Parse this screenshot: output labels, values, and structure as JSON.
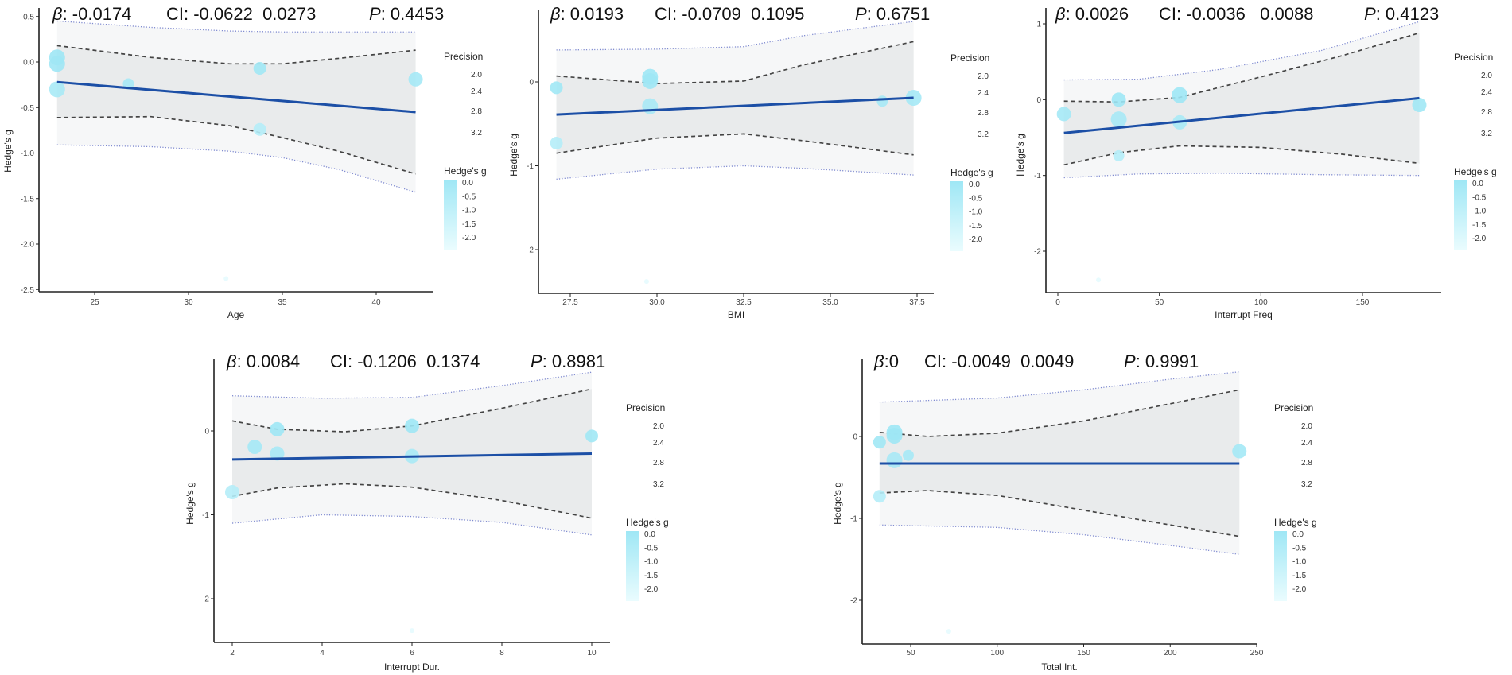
{
  "colors": {
    "point": "#9fe7f5",
    "point_low": "#e6fbfe",
    "regression_line": "#1c4fa6",
    "ci_fill": "#e9ebec",
    "pi_fill": "#f6f7f8",
    "ci_line": "#444444",
    "pi_line": "#7f8ad0",
    "axis": "#222222"
  },
  "chart_data": [
    {
      "type": "scatter",
      "title": {
        "beta_symbol": "β",
        "beta": ": -0.0174",
        "ci": "CI: -0.0622  0.0273",
        "p_symbol": "P",
        "p": ": 0.4453"
      },
      "xlabel": "Age",
      "ylabel": "Hedge's g",
      "xlim": [
        22.2,
        43
      ],
      "ylim": [
        -2.5,
        0.55
      ],
      "xticks": [
        {
          "value": 25,
          "label": "25"
        },
        {
          "value": 30,
          "label": "30"
        },
        {
          "value": 35,
          "label": "35"
        },
        {
          "value": 40,
          "label": "40"
        }
      ],
      "yticks": [
        {
          "value": 0.5,
          "label": "0.5"
        },
        {
          "value": 0,
          "label": "0.0"
        },
        {
          "value": -0.5,
          "label": "-0.5"
        },
        {
          "value": -1,
          "label": "-1.0"
        },
        {
          "value": -1.5,
          "label": "-1.5"
        },
        {
          "value": -2,
          "label": "-2.0"
        },
        {
          "value": -2.5,
          "label": "-2.5"
        }
      ],
      "points": [
        {
          "x": 23,
          "y": 0.05,
          "precision": 3.2
        },
        {
          "x": 23,
          "y": -0.02,
          "precision": 3.2
        },
        {
          "x": 23,
          "y": -0.3,
          "precision": 3.2
        },
        {
          "x": 26.8,
          "y": -0.24,
          "precision": 2.6
        },
        {
          "x": 33.8,
          "y": -0.07,
          "precision": 2.8
        },
        {
          "x": 33.8,
          "y": -0.74,
          "precision": 2.8
        },
        {
          "x": 42.1,
          "y": -0.19,
          "precision": 3.0
        },
        {
          "x": 32,
          "y": -2.38,
          "precision": 1.8
        }
      ],
      "regression": {
        "x": [
          23,
          42.1
        ],
        "y": [
          -0.22,
          -0.55
        ]
      },
      "ci_band": {
        "x": [
          23,
          28,
          32.2,
          35,
          38,
          42.1
        ],
        "lower": [
          -0.61,
          -0.6,
          -0.7,
          -0.83,
          -0.98,
          -1.23
        ],
        "upper": [
          0.18,
          0.05,
          -0.02,
          -0.02,
          0.04,
          0.13
        ]
      },
      "pi_band": {
        "x": [
          23,
          28,
          32.2,
          35,
          38,
          42.1
        ],
        "lower": [
          -0.91,
          -0.93,
          -0.98,
          -1.05,
          -1.18,
          -1.43
        ],
        "upper": [
          0.45,
          0.38,
          0.34,
          0.33,
          0.33,
          0.33
        ]
      },
      "legend": {
        "size_title": "Precision",
        "size_breaks": [
          "2.0",
          "2.4",
          "2.8",
          "3.2"
        ],
        "color_title": "Hedge's g",
        "color_breaks": [
          "0.0",
          "-0.5",
          "-1.0",
          "-1.5",
          "-2.0"
        ]
      }
    },
    {
      "type": "scatter",
      "title": {
        "beta_symbol": "β",
        "beta": ": 0.0193",
        "ci": "CI: -0.0709  0.1095",
        "p_symbol": "P",
        "p": ": 0.6751"
      },
      "xlabel": "BMI",
      "ylabel": "Hedge's g",
      "xlim": [
        26.6,
        38
      ],
      "ylim": [
        -2.5,
        0.85
      ],
      "xticks": [
        {
          "value": 27.5,
          "label": "27.5"
        },
        {
          "value": 30,
          "label": "30.0"
        },
        {
          "value": 32.5,
          "label": "32.5"
        },
        {
          "value": 35,
          "label": "35.0"
        },
        {
          "value": 37.5,
          "label": "37.5"
        }
      ],
      "yticks": [
        {
          "value": 0,
          "label": "0"
        },
        {
          "value": -1,
          "label": "-1"
        },
        {
          "value": -2,
          "label": "-2"
        }
      ],
      "points": [
        {
          "x": 27.1,
          "y": -0.07,
          "precision": 2.8
        },
        {
          "x": 27.1,
          "y": -0.73,
          "precision": 2.8
        },
        {
          "x": 29.8,
          "y": 0.06,
          "precision": 3.2
        },
        {
          "x": 29.8,
          "y": 0.01,
          "precision": 3.2
        },
        {
          "x": 29.8,
          "y": -0.29,
          "precision": 3.2
        },
        {
          "x": 29.7,
          "y": -2.38,
          "precision": 1.8
        },
        {
          "x": 36.5,
          "y": -0.23,
          "precision": 2.6
        },
        {
          "x": 37.4,
          "y": -0.19,
          "precision": 3.2
        }
      ],
      "regression": {
        "x": [
          27.1,
          37.4
        ],
        "y": [
          -0.39,
          -0.19
        ]
      },
      "ci_band": {
        "x": [
          27.1,
          30,
          32.5,
          34.2,
          37.4
        ],
        "lower": [
          -0.85,
          -0.67,
          -0.62,
          -0.7,
          -0.87
        ],
        "upper": [
          0.07,
          -0.02,
          0.01,
          0.2,
          0.48
        ]
      },
      "pi_band": {
        "x": [
          27.1,
          30,
          32.5,
          34.2,
          37.4
        ],
        "lower": [
          -1.16,
          -1.04,
          -1.0,
          -1.03,
          -1.11
        ],
        "upper": [
          0.38,
          0.39,
          0.42,
          0.55,
          0.72
        ]
      },
      "legend": {
        "size_title": "Precision",
        "size_breaks": [
          "2.0",
          "2.4",
          "2.8",
          "3.2"
        ],
        "color_title": "Hedge's g",
        "color_breaks": [
          "0.0",
          "-0.5",
          "-1.0",
          "-1.5",
          "-2.0"
        ]
      }
    },
    {
      "type": "scatter",
      "title": {
        "beta_symbol": "β",
        "beta": ": 0.0026",
        "ci": "CI: -0.0036   0.0088",
        "p_symbol": "P",
        "p": ": 0.4123"
      },
      "xlabel": "Interrupt Freq",
      "ylabel": "Hedge's g",
      "xlim": [
        -6,
        187
      ],
      "ylim": [
        -2.5,
        1.2
      ],
      "xticks": [
        {
          "value": 0,
          "label": "0"
        },
        {
          "value": 50,
          "label": "50"
        },
        {
          "value": 100,
          "label": "100"
        },
        {
          "value": 150,
          "label": "150"
        }
      ],
      "yticks": [
        {
          "value": 1,
          "label": "1"
        },
        {
          "value": 0,
          "label": "0"
        },
        {
          "value": -1,
          "label": "-1"
        },
        {
          "value": -2,
          "label": "-2"
        }
      ],
      "points": [
        {
          "x": 3,
          "y": -0.19,
          "precision": 3.0
        },
        {
          "x": 30,
          "y": 0.0,
          "precision": 3.0
        },
        {
          "x": 30,
          "y": -0.26,
          "precision": 3.2
        },
        {
          "x": 30,
          "y": -0.74,
          "precision": 2.6
        },
        {
          "x": 60,
          "y": 0.06,
          "precision": 3.2
        },
        {
          "x": 60,
          "y": -0.3,
          "precision": 3.0
        },
        {
          "x": 178,
          "y": -0.07,
          "precision": 3.0
        },
        {
          "x": 20,
          "y": -2.38,
          "precision": 1.8
        }
      ],
      "regression": {
        "x": [
          3,
          178
        ],
        "y": [
          -0.44,
          0.02
        ]
      },
      "ci_band": {
        "x": [
          3,
          30,
          60,
          100,
          140,
          178
        ],
        "lower": [
          -0.86,
          -0.7,
          -0.61,
          -0.63,
          -0.72,
          -0.84
        ],
        "upper": [
          -0.02,
          -0.03,
          0.03,
          0.3,
          0.58,
          0.88
        ]
      },
      "pi_band": {
        "x": [
          3,
          40,
          80,
          130,
          178
        ],
        "lower": [
          -1.03,
          -0.98,
          -0.97,
          -0.99,
          -1.0
        ],
        "upper": [
          0.26,
          0.27,
          0.4,
          0.65,
          1.03
        ]
      },
      "legend": {
        "size_title": "Precision",
        "size_breaks": [
          "2.0",
          "2.4",
          "2.8",
          "3.2"
        ],
        "color_title": "Hedge's g",
        "color_breaks": [
          "0.0",
          "-0.5",
          "-1.0",
          "-1.5",
          "-2.0"
        ]
      }
    },
    {
      "type": "scatter",
      "title": {
        "beta_symbol": "β",
        "beta": ": 0.0084",
        "ci": "CI: -0.1206  0.1374",
        "p_symbol": "P",
        "p": ": 0.8981"
      },
      "xlabel": "Interrupt Dur.",
      "ylabel": "Hedge's g",
      "xlim": [
        1.6,
        10.4
      ],
      "ylim": [
        -2.5,
        0.85
      ],
      "xticks": [
        {
          "value": 2,
          "label": "2"
        },
        {
          "value": 4,
          "label": "4"
        },
        {
          "value": 6,
          "label": "6"
        },
        {
          "value": 8,
          "label": "8"
        },
        {
          "value": 10,
          "label": "10"
        }
      ],
      "yticks": [
        {
          "value": 0,
          "label": "0"
        },
        {
          "value": -1,
          "label": "-1"
        },
        {
          "value": -2,
          "label": "-2"
        }
      ],
      "points": [
        {
          "x": 2,
          "y": -0.73,
          "precision": 3.0
        },
        {
          "x": 2.5,
          "y": -0.19,
          "precision": 3.0
        },
        {
          "x": 3,
          "y": 0.02,
          "precision": 3.0
        },
        {
          "x": 3,
          "y": -0.27,
          "precision": 3.0
        },
        {
          "x": 6,
          "y": 0.06,
          "precision": 3.0
        },
        {
          "x": 6,
          "y": -0.3,
          "precision": 3.0
        },
        {
          "x": 10,
          "y": -0.06,
          "precision": 2.8
        },
        {
          "x": 6,
          "y": -2.38,
          "precision": 1.8
        }
      ],
      "regression": {
        "x": [
          2,
          10
        ],
        "y": [
          -0.34,
          -0.27
        ]
      },
      "ci_band": {
        "x": [
          2,
          3,
          4.5,
          6,
          8,
          10
        ],
        "lower": [
          -0.78,
          -0.68,
          -0.63,
          -0.67,
          -0.83,
          -1.04
        ],
        "upper": [
          0.12,
          0.02,
          -0.01,
          0.06,
          0.27,
          0.5
        ]
      },
      "pi_band": {
        "x": [
          2,
          4,
          6,
          8,
          10
        ],
        "lower": [
          -1.1,
          -1.0,
          -1.02,
          -1.09,
          -1.24
        ],
        "upper": [
          0.42,
          0.39,
          0.4,
          0.54,
          0.7
        ]
      },
      "legend": {
        "size_title": "Precision",
        "size_breaks": [
          "2.0",
          "2.4",
          "2.8",
          "3.2"
        ],
        "color_title": "Hedge's g",
        "color_breaks": [
          "0.0",
          "-0.5",
          "-1.0",
          "-1.5",
          "-2.0"
        ]
      }
    },
    {
      "type": "scatter",
      "title": {
        "beta_symbol": "β",
        "beta": ":0",
        "ci": "CI: -0.0049  0.0049",
        "p_symbol": "P",
        "p": ": 0.9991"
      },
      "xlabel": "Total Int.",
      "ylabel": "Hedge's g",
      "xlim": [
        22,
        250
      ],
      "ylim": [
        -2.5,
        0.85
      ],
      "xticks": [
        {
          "value": 50,
          "label": "50"
        },
        {
          "value": 100,
          "label": "100"
        },
        {
          "value": 150,
          "label": "150"
        },
        {
          "value": 200,
          "label": "200"
        },
        {
          "value": 250,
          "label": "250"
        }
      ],
      "yticks": [
        {
          "value": 0,
          "label": "0"
        },
        {
          "value": -1,
          "label": "-1"
        },
        {
          "value": -2,
          "label": "-2"
        }
      ],
      "points": [
        {
          "x": 32,
          "y": -0.07,
          "precision": 2.8
        },
        {
          "x": 32,
          "y": -0.73,
          "precision": 2.8
        },
        {
          "x": 40.6,
          "y": 0.05,
          "precision": 3.2
        },
        {
          "x": 40.6,
          "y": 0.01,
          "precision": 3.2
        },
        {
          "x": 40.6,
          "y": -0.29,
          "precision": 3.2
        },
        {
          "x": 48.6,
          "y": -0.23,
          "precision": 2.6
        },
        {
          "x": 240,
          "y": -0.18,
          "precision": 3.0
        },
        {
          "x": 72,
          "y": -2.38,
          "precision": 1.8
        }
      ],
      "regression": {
        "x": [
          32,
          240
        ],
        "y": [
          -0.33,
          -0.33
        ]
      },
      "ci_band": {
        "x": [
          32,
          60,
          100,
          150,
          200,
          240
        ],
        "lower": [
          -0.69,
          -0.66,
          -0.72,
          -0.9,
          -1.08,
          -1.22
        ],
        "upper": [
          0.05,
          0.0,
          0.04,
          0.19,
          0.4,
          0.57
        ]
      },
      "pi_band": {
        "x": [
          32,
          100,
          150,
          200,
          240
        ],
        "lower": [
          -1.08,
          -1.11,
          -1.2,
          -1.33,
          -1.44
        ],
        "upper": [
          0.42,
          0.47,
          0.57,
          0.7,
          0.79
        ]
      },
      "legend": {
        "size_title": "Precision",
        "size_breaks": [
          "2.0",
          "2.4",
          "2.8",
          "3.2"
        ],
        "color_title": "Hedge's g",
        "color_breaks": [
          "0.0",
          "-0.5",
          "-1.0",
          "-1.5",
          "-2.0"
        ]
      }
    }
  ]
}
